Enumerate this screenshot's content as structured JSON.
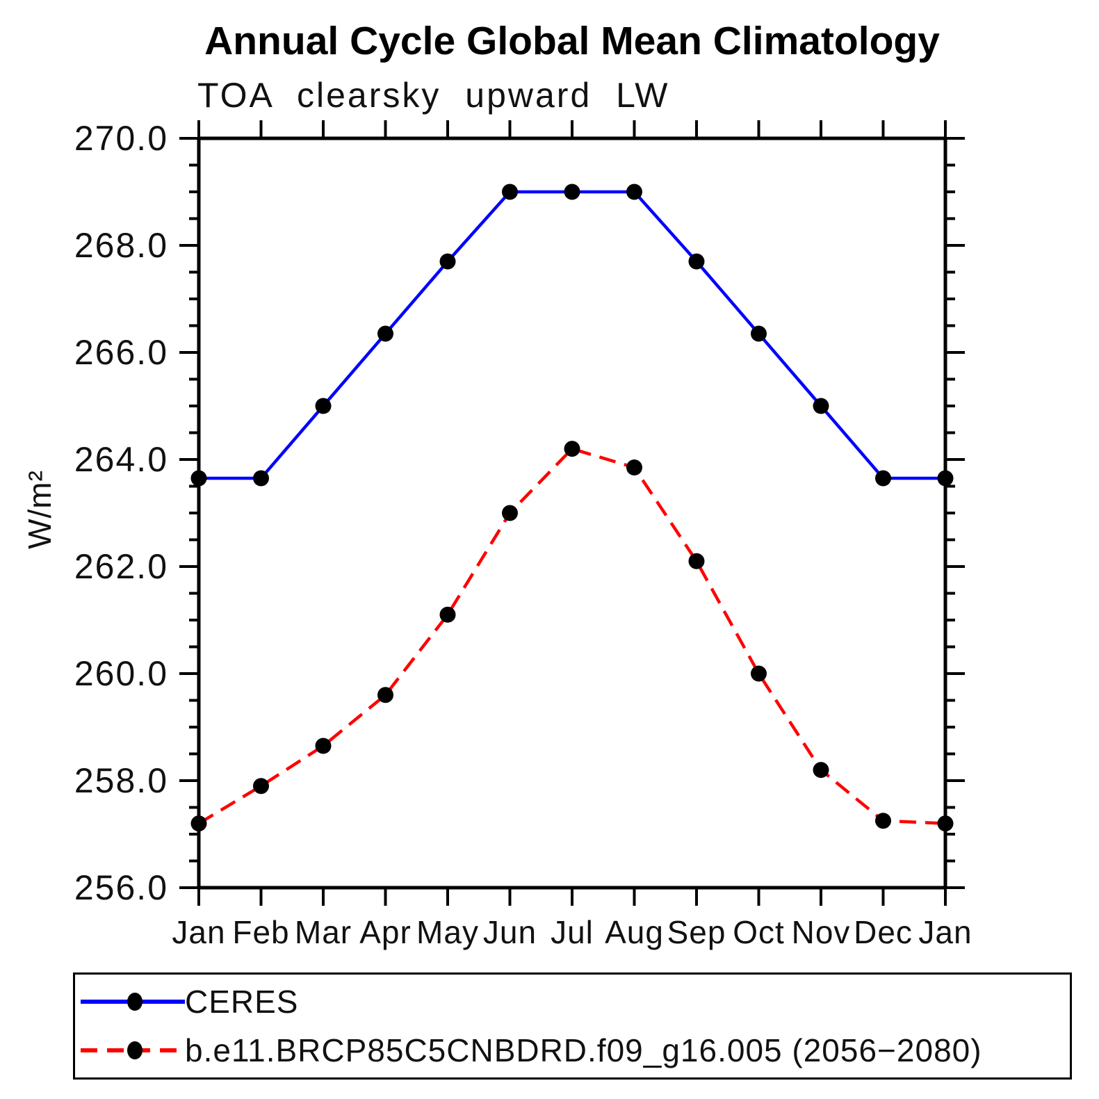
{
  "title": "Annual Cycle Global Mean Climatology",
  "subtitle": "TOA clearsky upward LW",
  "ylabel": "W/m²",
  "chart_data": {
    "type": "line",
    "categories": [
      "Jan",
      "Feb",
      "Mar",
      "Apr",
      "May",
      "Jun",
      "Jul",
      "Aug",
      "Sep",
      "Oct",
      "Nov",
      "Dec",
      "Jan"
    ],
    "series": [
      {
        "name": "CERES",
        "color": "#0000ff",
        "line_style": "solid",
        "marker": "filled-circle",
        "marker_color": "#000000",
        "values": [
          263.65,
          263.65,
          265.0,
          266.35,
          267.7,
          269.0,
          269.0,
          269.0,
          267.7,
          266.35,
          265.0,
          263.65,
          263.65
        ]
      },
      {
        "name": "b.e11.BRCP85C5CNBDRD.f09_g16.005 (2056−2080)",
        "color": "#ff0000",
        "line_style": "dashed",
        "marker": "filled-circle",
        "marker_color": "#000000",
        "values": [
          257.2,
          257.9,
          258.65,
          259.6,
          261.1,
          263.0,
          264.2,
          263.85,
          262.1,
          260.0,
          258.2,
          257.25,
          257.2
        ]
      }
    ],
    "ylim": [
      256.0,
      270.0
    ],
    "ytick_major_step": 2.0,
    "ytick_minor_step": 0.5,
    "ytick_labels": [
      "256.0",
      "258.0",
      "260.0",
      "262.0",
      "264.0",
      "266.0",
      "268.0",
      "270.0"
    ],
    "xlabel": "",
    "ylabel": "W/m²",
    "grid": false,
    "legend_position": "bottom-left-box",
    "axis_color": "#000000",
    "background_color": "#ffffff"
  }
}
